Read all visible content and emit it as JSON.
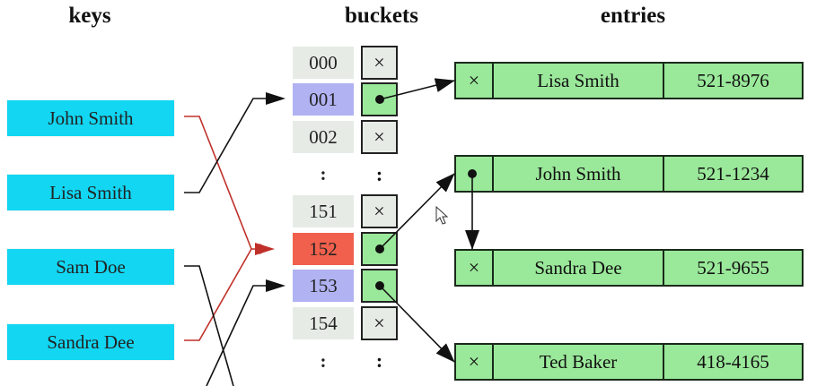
{
  "headers": {
    "keys": "keys",
    "buckets": "buckets",
    "entries": "entries"
  },
  "keys": [
    "John Smith",
    "Lisa Smith",
    "Sam Doe",
    "Sandra Dee"
  ],
  "buckets": {
    "b000": {
      "index": "000",
      "slot": "×"
    },
    "b001": {
      "index": "001",
      "slot": ""
    },
    "b002": {
      "index": "002",
      "slot": "×"
    },
    "ellipsis_top": {
      "index": ":",
      "slot": ":"
    },
    "b151": {
      "index": "151",
      "slot": "×"
    },
    "b152": {
      "index": "152",
      "slot": ""
    },
    "b153": {
      "index": "153",
      "slot": ""
    },
    "b154": {
      "index": "154",
      "slot": "×"
    },
    "ellipsis_bottom": {
      "index": ":",
      "slot": ":"
    }
  },
  "entries": [
    {
      "next": "×",
      "name": "Lisa Smith",
      "phone": "521-8976"
    },
    {
      "next": "",
      "name": "John Smith",
      "phone": "521-1234"
    },
    {
      "next": "×",
      "name": "Sandra Dee",
      "phone": "521-9655"
    },
    {
      "next": "×",
      "name": "Ted Baker",
      "phone": "418-4165"
    }
  ],
  "colors": {
    "key_fill": "#12d6f2",
    "bucket_grey": "#e6ebe6",
    "bucket_blue": "#b0b2f2",
    "bucket_red": "#f0604c",
    "pointer_green": "#9ae89a",
    "collision_line": "#c0302a"
  }
}
